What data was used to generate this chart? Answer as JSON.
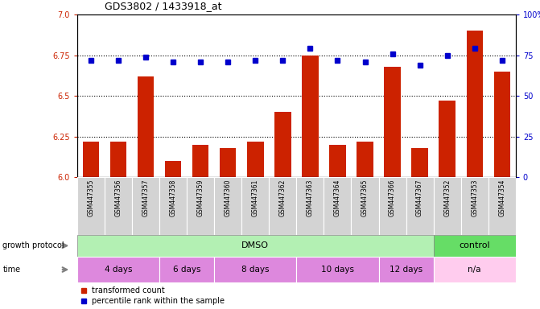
{
  "title": "GDS3802 / 1433918_at",
  "samples": [
    "GSM447355",
    "GSM447356",
    "GSM447357",
    "GSM447358",
    "GSM447359",
    "GSM447360",
    "GSM447361",
    "GSM447362",
    "GSM447363",
    "GSM447364",
    "GSM447365",
    "GSM447366",
    "GSM447367",
    "GSM447352",
    "GSM447353",
    "GSM447354"
  ],
  "red_values": [
    6.22,
    6.22,
    6.62,
    6.1,
    6.2,
    6.18,
    6.22,
    6.4,
    6.75,
    6.2,
    6.22,
    6.68,
    6.18,
    6.47,
    6.9,
    6.65
  ],
  "blue_values": [
    72,
    72,
    74,
    71,
    71,
    71,
    72,
    72,
    79,
    72,
    71,
    76,
    69,
    75,
    79,
    72
  ],
  "ylim_left": [
    6.0,
    7.0
  ],
  "ylim_right": [
    0,
    100
  ],
  "yticks_left": [
    6.0,
    6.25,
    6.5,
    6.75,
    7.0
  ],
  "yticks_right": [
    0,
    25,
    50,
    75,
    100
  ],
  "dotted_lines": [
    6.25,
    6.5,
    6.75
  ],
  "bar_color": "#CC2200",
  "dot_color": "#0000CC",
  "sample_box_color": "#D3D3D3",
  "dmso_color": "#B3F0B3",
  "control_color": "#66DD66",
  "time_purple_color": "#DD88DD",
  "time_pink_color": "#FFCCEE",
  "legend_red": "transformed count",
  "legend_blue": "percentile rank within the sample",
  "fig_width": 6.71,
  "fig_height": 3.84,
  "dpi": 100
}
